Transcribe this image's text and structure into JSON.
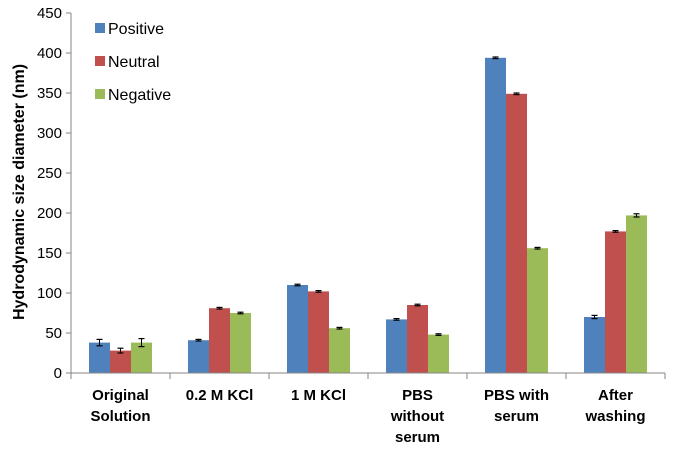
{
  "chart_data": {
    "type": "bar",
    "title": "",
    "xlabel": "",
    "ylabel": "Hydrodynamic size diameter (nm)",
    "ylim": [
      0,
      450
    ],
    "ytick_step": 50,
    "yticks": [
      "0",
      "50",
      "100",
      "150",
      "200",
      "250",
      "300",
      "350",
      "400",
      "450"
    ],
    "grid": false,
    "legend_position": "top-left",
    "categories": [
      [
        "Original",
        "Solution"
      ],
      [
        "0.2 M KCl"
      ],
      [
        "1 M KCl"
      ],
      [
        "PBS",
        "without",
        "serum"
      ],
      [
        "PBS with",
        "serum"
      ],
      [
        "After",
        "washing"
      ]
    ],
    "series": [
      {
        "name": "Positive",
        "color": "#4F81BD",
        "values": [
          38,
          41,
          110,
          67,
          394,
          70
        ],
        "errors": [
          4,
          1,
          1,
          1,
          1,
          2
        ]
      },
      {
        "name": "Neutral",
        "color": "#C0504D",
        "values": [
          28,
          81,
          102,
          85,
          349,
          177
        ],
        "errors": [
          3,
          1,
          1,
          1,
          1,
          1
        ]
      },
      {
        "name": "Negative",
        "color": "#9BBB59",
        "values": [
          38,
          75,
          56,
          48,
          156,
          197
        ],
        "errors": [
          5,
          1,
          1,
          1,
          1,
          2
        ]
      }
    ]
  }
}
